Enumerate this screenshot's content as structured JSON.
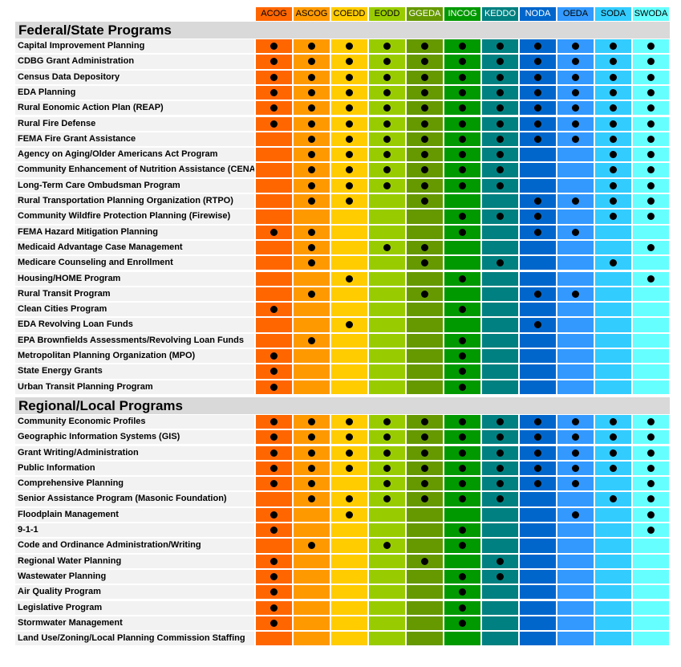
{
  "columns": [
    {
      "name": "ACOG",
      "color": "#ff6600"
    },
    {
      "name": "ASCOG",
      "color": "#ff9900"
    },
    {
      "name": "COEDD",
      "color": "#ffcc00"
    },
    {
      "name": "EODD",
      "color": "#99cc00"
    },
    {
      "name": "GGEDA",
      "color": "#669900"
    },
    {
      "name": "INCOG",
      "color": "#009900"
    },
    {
      "name": "KEDDO",
      "color": "#008080"
    },
    {
      "name": "NODA",
      "color": "#0066cc"
    },
    {
      "name": "OEDA",
      "color": "#3399ff"
    },
    {
      "name": "SODA",
      "color": "#33ccff"
    },
    {
      "name": "SWODA",
      "color": "#66ffff"
    }
  ],
  "sections": [
    {
      "title": "Federal/State Programs",
      "rows": [
        {
          "label": "Capital Improvement Planning",
          "cells": [
            true,
            true,
            true,
            true,
            true,
            true,
            true,
            true,
            true,
            true,
            true
          ]
        },
        {
          "label": "CDBG Grant Administration",
          "cells": [
            true,
            true,
            true,
            true,
            true,
            true,
            true,
            true,
            true,
            true,
            true
          ]
        },
        {
          "label": "Census Data Depository",
          "cells": [
            true,
            true,
            true,
            true,
            true,
            true,
            true,
            true,
            true,
            true,
            true
          ]
        },
        {
          "label": "EDA Planning",
          "cells": [
            true,
            true,
            true,
            true,
            true,
            true,
            true,
            true,
            true,
            true,
            true
          ]
        },
        {
          "label": "Rural Eonomic Action Plan (REAP)",
          "cells": [
            true,
            true,
            true,
            true,
            true,
            true,
            true,
            true,
            true,
            true,
            true
          ]
        },
        {
          "label": "Rural Fire Defense",
          "cells": [
            true,
            true,
            true,
            true,
            true,
            true,
            true,
            true,
            true,
            true,
            true
          ]
        },
        {
          "label": "FEMA Fire Grant Assistance",
          "cells": [
            false,
            true,
            true,
            true,
            true,
            true,
            true,
            true,
            true,
            true,
            true
          ]
        },
        {
          "label": "Agency on Aging/Older Americans Act Program",
          "cells": [
            false,
            true,
            true,
            true,
            true,
            true,
            true,
            false,
            false,
            true,
            true
          ]
        },
        {
          "label": "Community Enhancement of Nutrition Assistance (CENA)",
          "cells": [
            false,
            true,
            true,
            true,
            true,
            true,
            true,
            false,
            false,
            true,
            true
          ]
        },
        {
          "label": "Long-Term Care Ombudsman Program",
          "cells": [
            false,
            true,
            true,
            true,
            true,
            true,
            true,
            false,
            false,
            true,
            true
          ]
        },
        {
          "label": "Rural Transportation Planning Organization (RTPO)",
          "cells": [
            false,
            true,
            true,
            false,
            true,
            false,
            false,
            true,
            true,
            true,
            true
          ]
        },
        {
          "label": "Community Wildfire Protection Planning (Firewise)",
          "cells": [
            false,
            false,
            false,
            false,
            false,
            true,
            true,
            true,
            false,
            true,
            true
          ]
        },
        {
          "label": "FEMA Hazard Mitigation Planning",
          "cells": [
            true,
            true,
            false,
            false,
            false,
            true,
            false,
            true,
            true,
            false,
            false
          ]
        },
        {
          "label": "Medicaid Advantage Case Management",
          "cells": [
            false,
            true,
            false,
            true,
            true,
            false,
            false,
            false,
            false,
            false,
            true
          ]
        },
        {
          "label": "Medicare Counseling and Enrollment",
          "cells": [
            false,
            true,
            false,
            false,
            true,
            false,
            true,
            false,
            false,
            true,
            false
          ]
        },
        {
          "label": "Housing/HOME Program",
          "cells": [
            false,
            false,
            true,
            false,
            false,
            true,
            false,
            false,
            false,
            false,
            true
          ]
        },
        {
          "label": "Rural Transit Program",
          "cells": [
            false,
            true,
            false,
            false,
            true,
            false,
            false,
            true,
            true,
            false,
            false
          ]
        },
        {
          "label": "Clean Cities Program",
          "cells": [
            true,
            false,
            false,
            false,
            false,
            true,
            false,
            false,
            false,
            false,
            false
          ]
        },
        {
          "label": "EDA Revolving Loan Funds",
          "cells": [
            false,
            false,
            true,
            false,
            false,
            false,
            false,
            true,
            false,
            false,
            false
          ]
        },
        {
          "label": "EPA Brownfields Assessments/Revolving Loan Funds",
          "cells": [
            false,
            true,
            false,
            false,
            false,
            true,
            false,
            false,
            false,
            false,
            false
          ]
        },
        {
          "label": "Metropolitan Planning Organization (MPO)",
          "cells": [
            true,
            false,
            false,
            false,
            false,
            true,
            false,
            false,
            false,
            false,
            false
          ]
        },
        {
          "label": "State Energy Grants",
          "cells": [
            true,
            false,
            false,
            false,
            false,
            true,
            false,
            false,
            false,
            false,
            false
          ]
        },
        {
          "label": "Urban Transit Planning Program",
          "cells": [
            true,
            false,
            false,
            false,
            false,
            true,
            false,
            false,
            false,
            false,
            false
          ]
        }
      ]
    },
    {
      "title": "Regional/Local Programs",
      "rows": [
        {
          "label": "Community Economic Profiles",
          "cells": [
            true,
            true,
            true,
            true,
            true,
            true,
            true,
            true,
            true,
            true,
            true
          ]
        },
        {
          "label": "Geographic Information Systems (GIS)",
          "cells": [
            true,
            true,
            true,
            true,
            true,
            true,
            true,
            true,
            true,
            true,
            true
          ]
        },
        {
          "label": "Grant Writing/Administration",
          "cells": [
            true,
            true,
            true,
            true,
            true,
            true,
            true,
            true,
            true,
            true,
            true
          ]
        },
        {
          "label": "Public Information",
          "cells": [
            true,
            true,
            true,
            true,
            true,
            true,
            true,
            true,
            true,
            true,
            true
          ]
        },
        {
          "label": "Comprehensive Planning",
          "cells": [
            true,
            true,
            false,
            true,
            true,
            true,
            true,
            true,
            true,
            false,
            true
          ]
        },
        {
          "label": "Senior Assistance Program (Masonic Foundation)",
          "cells": [
            false,
            true,
            true,
            true,
            true,
            true,
            true,
            false,
            false,
            true,
            true
          ]
        },
        {
          "label": "Floodplain Management",
          "cells": [
            true,
            false,
            true,
            false,
            false,
            false,
            false,
            false,
            true,
            false,
            true
          ]
        },
        {
          "label": "9-1-1",
          "cells": [
            true,
            false,
            false,
            false,
            false,
            true,
            false,
            false,
            false,
            false,
            true
          ]
        },
        {
          "label": "Code and Ordinance Administration/Writing",
          "cells": [
            false,
            true,
            false,
            true,
            false,
            true,
            false,
            false,
            false,
            false,
            false
          ]
        },
        {
          "label": "Regional Water Planning",
          "cells": [
            true,
            false,
            false,
            false,
            true,
            false,
            true,
            false,
            false,
            false,
            false
          ]
        },
        {
          "label": "Wastewater Planning",
          "cells": [
            true,
            false,
            false,
            false,
            false,
            true,
            true,
            false,
            false,
            false,
            false
          ]
        },
        {
          "label": "Air Quality Program",
          "cells": [
            true,
            false,
            false,
            false,
            false,
            true,
            false,
            false,
            false,
            false,
            false
          ]
        },
        {
          "label": "Legislative Program",
          "cells": [
            true,
            false,
            false,
            false,
            false,
            true,
            false,
            false,
            false,
            false,
            false
          ]
        },
        {
          "label": "Stormwater Management",
          "cells": [
            true,
            false,
            false,
            false,
            false,
            true,
            false,
            false,
            false,
            false,
            false
          ]
        },
        {
          "label": "Land Use/Zoning/Local Planning Commission Staffing",
          "cells": [
            false,
            false,
            false,
            false,
            false,
            false,
            false,
            false,
            false,
            false,
            false
          ]
        }
      ]
    }
  ]
}
